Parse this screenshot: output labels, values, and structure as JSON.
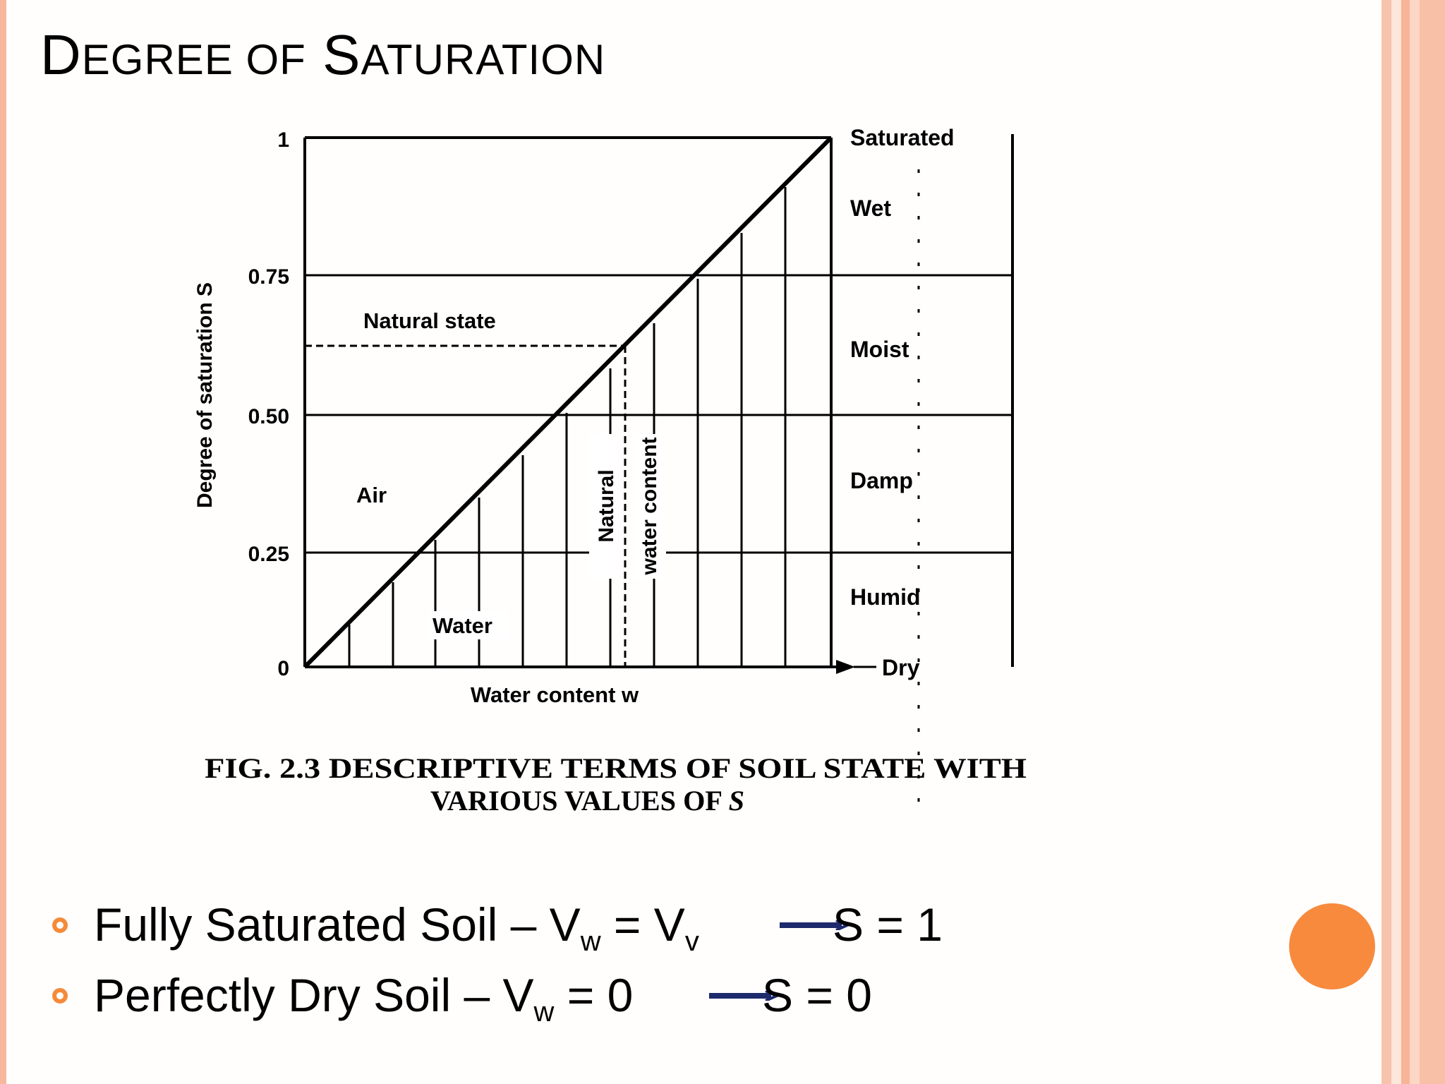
{
  "slide": {
    "title_first_cap": "D",
    "title_small_1": "EGREE OF",
    "title_second_cap": "S",
    "title_small_2": "ATURATION"
  },
  "figure": {
    "y_axis_label": "Degree of saturation S",
    "x_axis_label": "Water content w",
    "y_ticks": [
      "0",
      "0.25",
      "0.50",
      "0.75",
      "1"
    ],
    "region_labels": {
      "air": "Air",
      "water": "Water",
      "natural_state": "Natural state"
    },
    "natural_water_content_line1": "Natural",
    "natural_water_content_line2": "water content",
    "soil_states": [
      "Saturated",
      "Wet",
      "Moist",
      "Damp",
      "Humid",
      "Dry"
    ],
    "caption_line1": "FIG. 2.3 DESCRIPTIVE TERMS OF SOIL STATE WITH",
    "caption_line2_a": "VARIOUS VALUES OF ",
    "caption_line2_b": "S"
  },
  "chart_data": {
    "type": "line",
    "xlabel": "Water content w",
    "ylabel": "Degree of saturation S",
    "ylim": [
      0,
      1
    ],
    "y_ticks": [
      0,
      0.25,
      0.5,
      0.75,
      1
    ],
    "series": [
      {
        "values": [
          0,
          1
        ]
      }
    ],
    "natural_state_S": 0.62,
    "state_bands": [
      {
        "name": "Dry",
        "range": [
          0,
          0
        ]
      },
      {
        "name": "Humid",
        "range": [
          0,
          0.25
        ]
      },
      {
        "name": "Damp",
        "range": [
          0.25,
          0.5
        ]
      },
      {
        "name": "Moist",
        "range": [
          0.5,
          0.75
        ]
      },
      {
        "name": "Wet",
        "range": [
          0.75,
          1
        ]
      },
      {
        "name": "Saturated",
        "range": [
          1,
          1
        ]
      }
    ]
  },
  "bullets": [
    {
      "text_a": "Fully Saturated Soil – V",
      "sub_a": "w",
      "text_b": " = V",
      "sub_b": "v",
      "result": "S = 1"
    },
    {
      "text_a": "Perfectly Dry Soil – V",
      "sub_a": "w",
      "text_b": " = 0",
      "result": "S = 0"
    }
  ],
  "colors": {
    "accent_orange": "#f88a3e",
    "bullet_orange": "#f58b3a",
    "arrow_navy": "#1d2a6b",
    "border_peach": "#f6b79d"
  }
}
